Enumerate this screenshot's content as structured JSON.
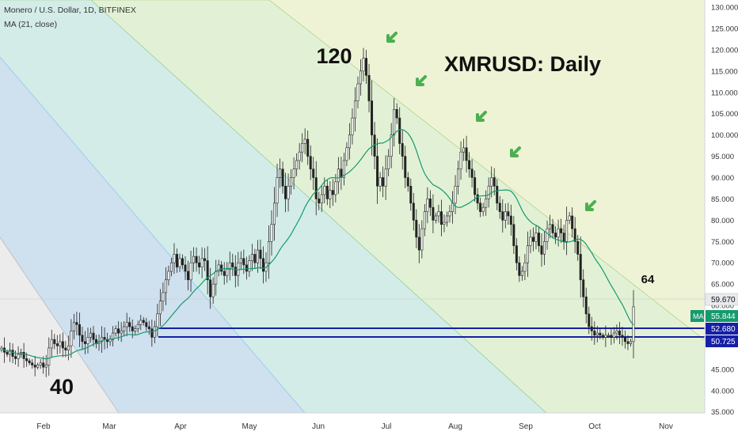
{
  "header": {
    "symbol_line": "Monero / U.S. Dollar, 1D, BITFINEX",
    "indicator_line": "MA (21, close)"
  },
  "annotations": {
    "title": "XMRUSD: Daily",
    "peak": "120",
    "low": "40",
    "target": "64"
  },
  "price_tags": {
    "last": "59.670",
    "ma_label": "MA",
    "ma": "55.844",
    "support_upper": "52.680",
    "support_lower": "50.725"
  },
  "colors": {
    "up": "#26a69a",
    "down": "#ef5350",
    "candle_body": "#222222",
    "ma_line": "#159a6e",
    "support": "#1520a6",
    "arrow": "#4caf50",
    "band_gray": "#ececec",
    "band_blue": "#cfe0ee",
    "band_cyan": "#d3ece8",
    "band_green": "#e2f1d6",
    "band_yellow": "#eef3d6"
  },
  "chart_data": {
    "type": "candlestick",
    "title": "XMRUSD: Daily",
    "y_axis": {
      "ticks": [
        "130.000",
        "125.000",
        "120.000",
        "115.000",
        "110.000",
        "105.000",
        "100.000",
        "95.000",
        "90.000",
        "85.000",
        "80.000",
        "75.000",
        "70.000",
        "65.000",
        "60.000",
        "55.000",
        "45.000",
        "40.000",
        "35.000"
      ],
      "range": [
        32,
        131
      ],
      "position": "right"
    },
    "x_axis": {
      "ticks": [
        "Feb",
        "Mar",
        "Apr",
        "May",
        "Jun",
        "Jul",
        "Aug",
        "Sep",
        "Oct",
        "Nov"
      ]
    },
    "ma_period": 21,
    "support_levels": [
      52.68,
      50.725
    ],
    "target_level": 64,
    "closes": [
      50,
      49,
      48.5,
      49.5,
      48,
      47.5,
      48.5,
      49,
      47.5,
      47,
      46.5,
      46,
      45.5,
      46,
      46.5,
      45.5,
      46,
      50,
      52,
      51,
      50.5,
      51.5,
      50,
      49.5,
      50.5,
      54,
      56,
      55.5,
      53,
      51.5,
      51,
      52.5,
      53.5,
      52,
      51,
      51.5,
      52.5,
      52,
      51.5,
      52,
      53.5,
      54.5,
      53.5,
      54,
      55,
      56,
      55,
      54,
      54.5,
      55.5,
      56.5,
      56,
      55,
      54.5,
      52.5,
      55,
      58,
      61,
      63,
      66,
      68,
      70,
      72,
      69,
      71,
      69.5,
      68,
      66,
      70,
      71.5,
      70,
      69,
      71,
      70.5,
      66,
      62,
      65,
      68,
      69.5,
      68,
      67,
      68.5,
      70,
      69,
      67,
      70,
      71,
      69.5,
      68,
      70.5,
      72,
      70,
      73,
      71,
      68,
      70,
      75,
      79,
      84,
      90,
      92,
      88,
      85,
      88,
      90,
      92,
      94,
      96,
      98,
      99,
      95,
      92,
      90,
      85,
      84,
      86,
      88,
      85,
      87,
      86,
      89,
      92,
      90,
      94,
      97,
      100,
      104,
      108,
      112,
      115,
      118,
      114,
      108,
      100,
      95,
      88,
      90,
      88,
      92,
      95,
      100,
      106,
      104,
      98,
      95,
      90,
      88,
      84,
      80,
      76,
      73,
      78,
      82,
      85,
      83,
      80,
      81,
      82,
      79,
      79.5,
      81,
      82,
      84,
      88,
      92,
      96,
      97,
      94,
      92,
      90,
      86,
      84,
      82,
      83,
      85,
      88,
      90,
      88,
      84,
      82,
      80,
      82,
      81,
      79,
      74,
      70,
      67,
      68,
      70,
      74,
      76,
      75,
      77,
      74,
      72,
      75,
      78,
      79,
      77,
      76,
      78,
      77,
      75,
      80,
      81,
      78,
      75,
      72,
      66,
      62,
      58,
      55,
      54,
      53,
      53.5,
      53,
      52.5,
      53,
      53,
      52.5,
      53.5,
      54,
      53,
      52.5,
      51.5,
      51,
      51.5,
      59.67
    ]
  }
}
